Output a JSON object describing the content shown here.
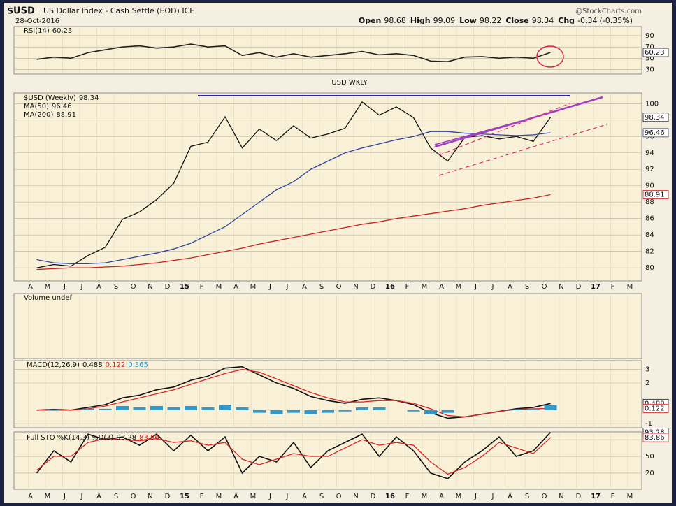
{
  "header": {
    "symbol": "$USD",
    "name": "US Dollar Index - Cash Settle (EOD) ICE",
    "date": "28-Oct-2016",
    "source": "@StockCharts.com",
    "quote": [
      {
        "label": "Open",
        "value": 98.68
      },
      {
        "label": "High",
        "value": 99.09
      },
      {
        "label": "Low",
        "value": 98.22
      },
      {
        "label": "Close",
        "value": 98.34
      },
      {
        "label": "Chg",
        "value": -0.34
      }
    ],
    "change_pct": "(-0.35%)"
  },
  "chart_data": [
    {
      "type": "line",
      "title": "RSI(14)",
      "ylim": [
        22,
        106
      ],
      "yticks": [
        30,
        50,
        70,
        90
      ],
      "series": [
        {
          "name": "RSI(14)",
          "color": "#222222",
          "values": [
            48,
            52,
            50,
            60,
            65,
            70,
            72,
            68,
            70,
            75,
            70,
            72,
            55,
            60,
            52,
            58,
            52,
            55,
            58,
            62,
            56,
            58,
            55,
            45,
            44,
            52,
            53,
            50,
            52,
            50,
            60.23,
            null,
            null,
            null,
            null,
            null
          ]
        }
      ]
    },
    {
      "type": "line",
      "title": "USD WKLY",
      "ylim": [
        78.4,
        101.3
      ],
      "yticks": [
        80,
        82,
        84,
        86,
        88,
        90,
        92,
        94,
        96,
        98,
        100
      ],
      "categories": [
        "A",
        "M",
        "J",
        "J",
        "A",
        "S",
        "O",
        "N",
        "D",
        "15",
        "F",
        "M",
        "A",
        "M",
        "J",
        "J",
        "A",
        "S",
        "O",
        "N",
        "D",
        "16",
        "F",
        "M",
        "A",
        "M",
        "J",
        "J",
        "A",
        "S",
        "O",
        "N",
        "D",
        "17",
        "F",
        "M"
      ],
      "series": [
        {
          "name": "$USD (Weekly)",
          "color": "#111111",
          "values": [
            80,
            80.4,
            80.2,
            81.5,
            82.5,
            85.9,
            86.8,
            88.3,
            90.3,
            94.8,
            95.3,
            98.4,
            94.6,
            96.9,
            95.5,
            97.3,
            95.8,
            96.3,
            97,
            100.2,
            98.6,
            99.6,
            98.3,
            94.6,
            93,
            95.9,
            96.1,
            95.7,
            96,
            95.4,
            98.34,
            null,
            null,
            null,
            null,
            null
          ]
        },
        {
          "name": "MA(50)",
          "color": "#33449a",
          "values": [
            81,
            80.6,
            80.5,
            80.5,
            80.6,
            81,
            81.4,
            81.8,
            82.3,
            83,
            84,
            85,
            86.5,
            88,
            89.5,
            90.5,
            92,
            93,
            94,
            94.6,
            95.1,
            95.6,
            96,
            96.6,
            96.6,
            96.4,
            96.3,
            96.2,
            96.1,
            96.2,
            96.46,
            null,
            null,
            null,
            null,
            null
          ]
        },
        {
          "name": "MA(200)",
          "color": "#cc2222",
          "values": [
            79.8,
            79.9,
            80,
            80,
            80.1,
            80.2,
            80.4,
            80.6,
            80.9,
            81.2,
            81.6,
            82,
            82.4,
            82.9,
            83.3,
            83.7,
            84.1,
            84.5,
            84.9,
            85.3,
            85.6,
            86,
            86.3,
            86.6,
            86.9,
            87.2,
            87.6,
            87.9,
            88.2,
            88.5,
            88.91,
            null,
            null,
            null,
            null,
            null
          ]
        }
      ]
    },
    {
      "type": "volume",
      "title": "Volume undef"
    },
    {
      "type": "line",
      "title": "MACD(12,26,9)",
      "ylim": [
        -1.3,
        3.65
      ],
      "yticks": [
        -1,
        2,
        3
      ],
      "series": [
        {
          "name": "MACD",
          "color": "#111111",
          "values": [
            0,
            0.05,
            0,
            0.2,
            0.4,
            0.9,
            1.1,
            1.5,
            1.7,
            2.2,
            2.5,
            3.1,
            3.2,
            2.6,
            2.0,
            1.6,
            1.0,
            0.7,
            0.5,
            0.8,
            0.9,
            0.7,
            0.4,
            -0.2,
            -0.6,
            -0.5,
            -0.3,
            -0.1,
            0.1,
            0.2,
            0.488,
            null,
            null,
            null,
            null,
            null
          ]
        },
        {
          "name": "Signal",
          "color": "#dd2222",
          "values": [
            0,
            0,
            0,
            0.1,
            0.3,
            0.6,
            0.9,
            1.2,
            1.5,
            1.9,
            2.3,
            2.7,
            3.0,
            2.8,
            2.3,
            1.8,
            1.3,
            0.9,
            0.6,
            0.6,
            0.7,
            0.7,
            0.5,
            0.1,
            -0.4,
            -0.5,
            -0.3,
            -0.1,
            0.05,
            0.1,
            0.122,
            null,
            null,
            null,
            null,
            null
          ]
        },
        {
          "name": "Histogram",
          "color": "#3399cc",
          "kind": "bar",
          "values": [
            0,
            0.05,
            0,
            0.1,
            0.1,
            0.3,
            0.2,
            0.3,
            0.2,
            0.3,
            0.2,
            0.4,
            0.2,
            -0.2,
            -0.3,
            -0.2,
            -0.3,
            -0.2,
            -0.1,
            0.2,
            0.2,
            0,
            -0.1,
            -0.3,
            -0.2,
            0,
            0,
            0,
            0.05,
            0.1,
            0.365,
            null,
            null,
            null,
            null,
            null
          ]
        }
      ]
    },
    {
      "type": "line",
      "title": "Full STO %K(14,3) %D(3)",
      "ylim": [
        -9,
        94
      ],
      "yticks": [
        20,
        50,
        80
      ],
      "series": [
        {
          "name": "%K",
          "color": "#111111",
          "values": [
            20,
            60,
            40,
            90,
            80,
            85,
            70,
            90,
            60,
            88,
            60,
            85,
            20,
            50,
            40,
            75,
            30,
            60,
            75,
            90,
            50,
            85,
            60,
            20,
            10,
            40,
            60,
            85,
            50,
            60,
            93.28,
            null,
            null,
            null,
            null,
            null
          ]
        },
        {
          "name": "%D",
          "color": "#dd2222",
          "values": [
            25,
            50,
            50,
            75,
            82,
            80,
            78,
            82,
            75,
            78,
            70,
            75,
            45,
            35,
            45,
            55,
            50,
            50,
            65,
            80,
            70,
            75,
            70,
            40,
            18,
            30,
            50,
            75,
            65,
            55,
            83.86,
            null,
            null,
            null,
            null,
            null
          ]
        }
      ]
    }
  ]
}
